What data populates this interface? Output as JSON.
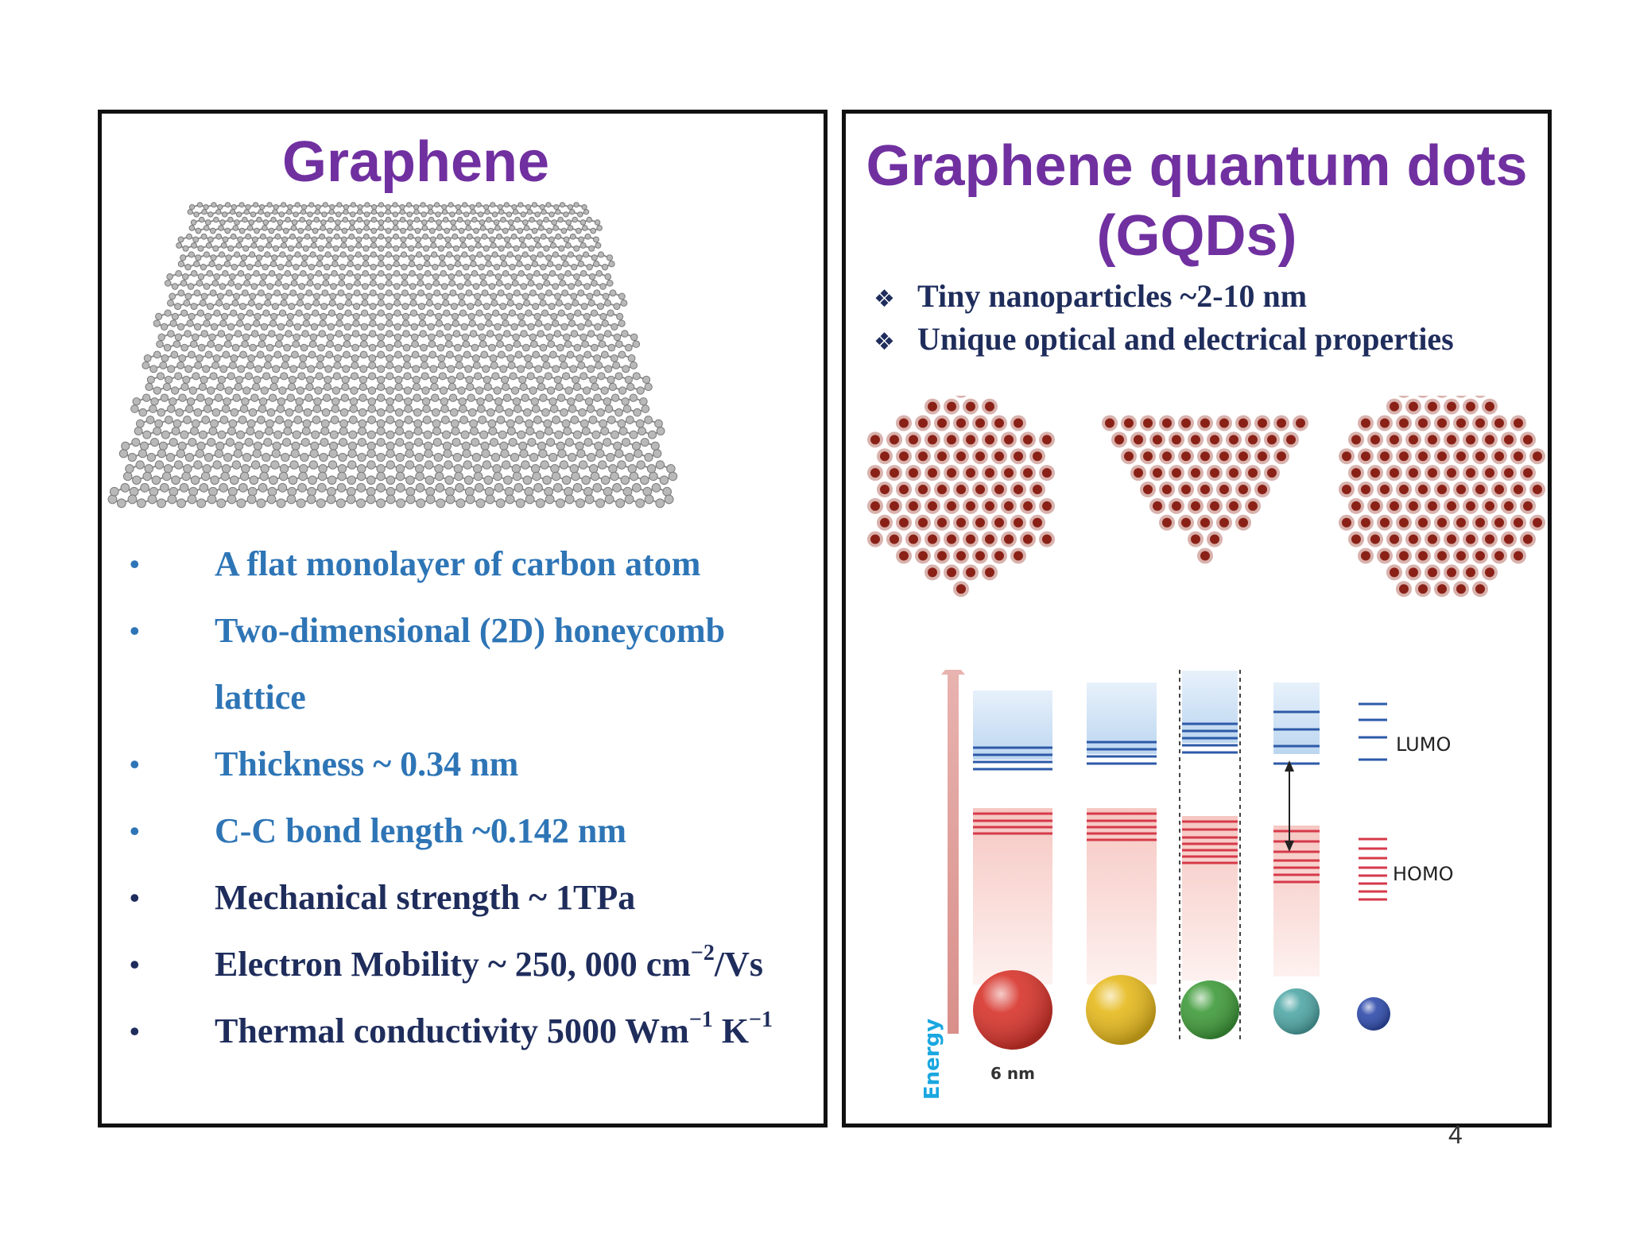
{
  "left": {
    "title": "Graphene",
    "properties": [
      {
        "text": "A flat monolayer of carbon atom",
        "color": "#2e75b6"
      },
      {
        "text": "Two-dimensional (2D) honeycomb",
        "color": "#2e75b6"
      },
      {
        "text": "lattice",
        "color": "#2e75b6",
        "continuation": true
      },
      {
        "text": "Thickness ~ 0.34 nm",
        "color": "#2e75b6"
      },
      {
        "text": "C-C bond length ~0.142 nm",
        "color": "#2e75b6"
      },
      {
        "text": "Mechanical strength ~ 1TPa",
        "color": "#1f2d5c"
      }
    ],
    "mobility": {
      "prefix": "Electron Mobility ~ 250, 000 cm",
      "exp": "−2",
      "suffix": "/Vs"
    },
    "thermal": {
      "prefix": "Thermal conductivity 5000 Wm",
      "exp1": "−1",
      "mid": " K",
      "exp2": "−1"
    },
    "bullet": "•"
  },
  "right": {
    "title_line1": "Graphene quantum dots",
    "title_line2": "(GQDs)",
    "features": [
      "Tiny nanoparticles ~2-10 nm",
      "Unique optical and electrical properties"
    ],
    "feature_bullet": "❖",
    "diagram": {
      "axis_label": "Energy",
      "lumo_label": "LUMO",
      "homo_label": "HOMO",
      "size_label": "6 nm",
      "sphere_colors": [
        "#d7332a",
        "#e6b91c",
        "#3f9b3a",
        "#4fa7a6",
        "#2f4bab"
      ]
    }
  },
  "page_number": "4"
}
